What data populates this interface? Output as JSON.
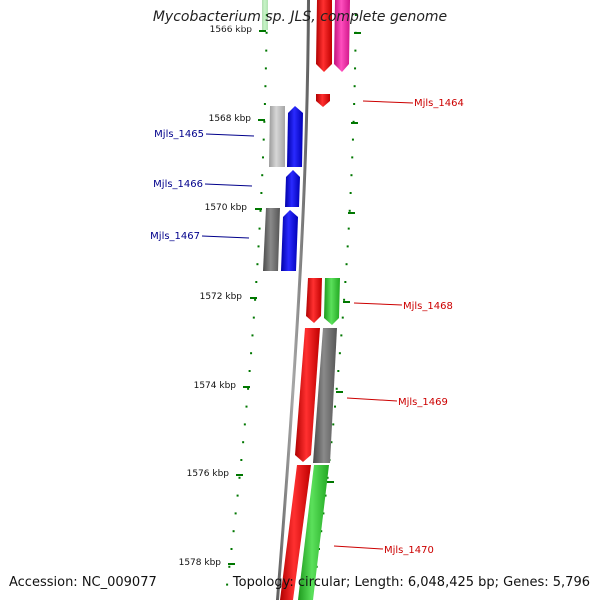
{
  "title": "Mycobacterium sp. JLS, complete genome",
  "accession": "Accession: NC_009077",
  "summary": "Topology: circular; Length: 6,048,425 bp; Genes: 5,796",
  "scale_labels": [
    "1566 kbp",
    "1568 kbp",
    "1570 kbp",
    "1572 kbp",
    "1574 kbp",
    "1576 kbp",
    "1578 kbp"
  ],
  "left_labels": [
    "Mjls_1465",
    "Mjls_1466",
    "Mjls_1467"
  ],
  "right_labels": [
    "Mjls_1464",
    "Mjls_1468",
    "Mjls_1469",
    "Mjls_1470"
  ],
  "colors": {
    "red": "#ff0000",
    "pink": "#ff1aa0",
    "blue": "#0000ee",
    "green": "#2ecc2e",
    "gray": "#6e6e6e",
    "lightgray": "#bdbdbd",
    "tick": "#007700",
    "backbone": "#808080",
    "left_label_color": "#00008b",
    "right_label_color": "#cc0000"
  }
}
